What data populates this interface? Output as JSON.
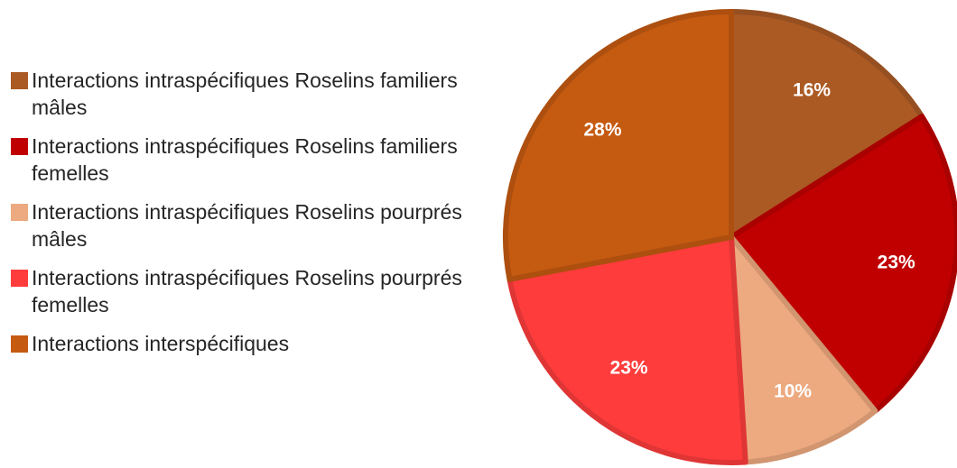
{
  "chart_data": {
    "type": "pie",
    "title": "",
    "legend_position": "left",
    "start_angle_deg": 0,
    "direction": "clockwise",
    "slices": [
      {
        "label": "Interactions intraspécifiques Roselins familiers mâles",
        "value": 16,
        "value_label": "16%",
        "color": "#ab5a24"
      },
      {
        "label": "Interactions intraspécifiques Roselins familiers femelles",
        "value": 23,
        "value_label": "23%",
        "color": "#c00000"
      },
      {
        "label": "Interactions intraspécifiques Roselins pourprés mâles",
        "value": 10,
        "value_label": "10%",
        "color": "#eda97f"
      },
      {
        "label": "Interactions intraspécifiques Roselins pourprés femelles",
        "value": 23,
        "value_label": "23%",
        "color": "#ff3c3c"
      },
      {
        "label": "Interactions interspécifiques",
        "value": 28,
        "value_label": "28%",
        "color": "#c55a11"
      }
    ]
  }
}
